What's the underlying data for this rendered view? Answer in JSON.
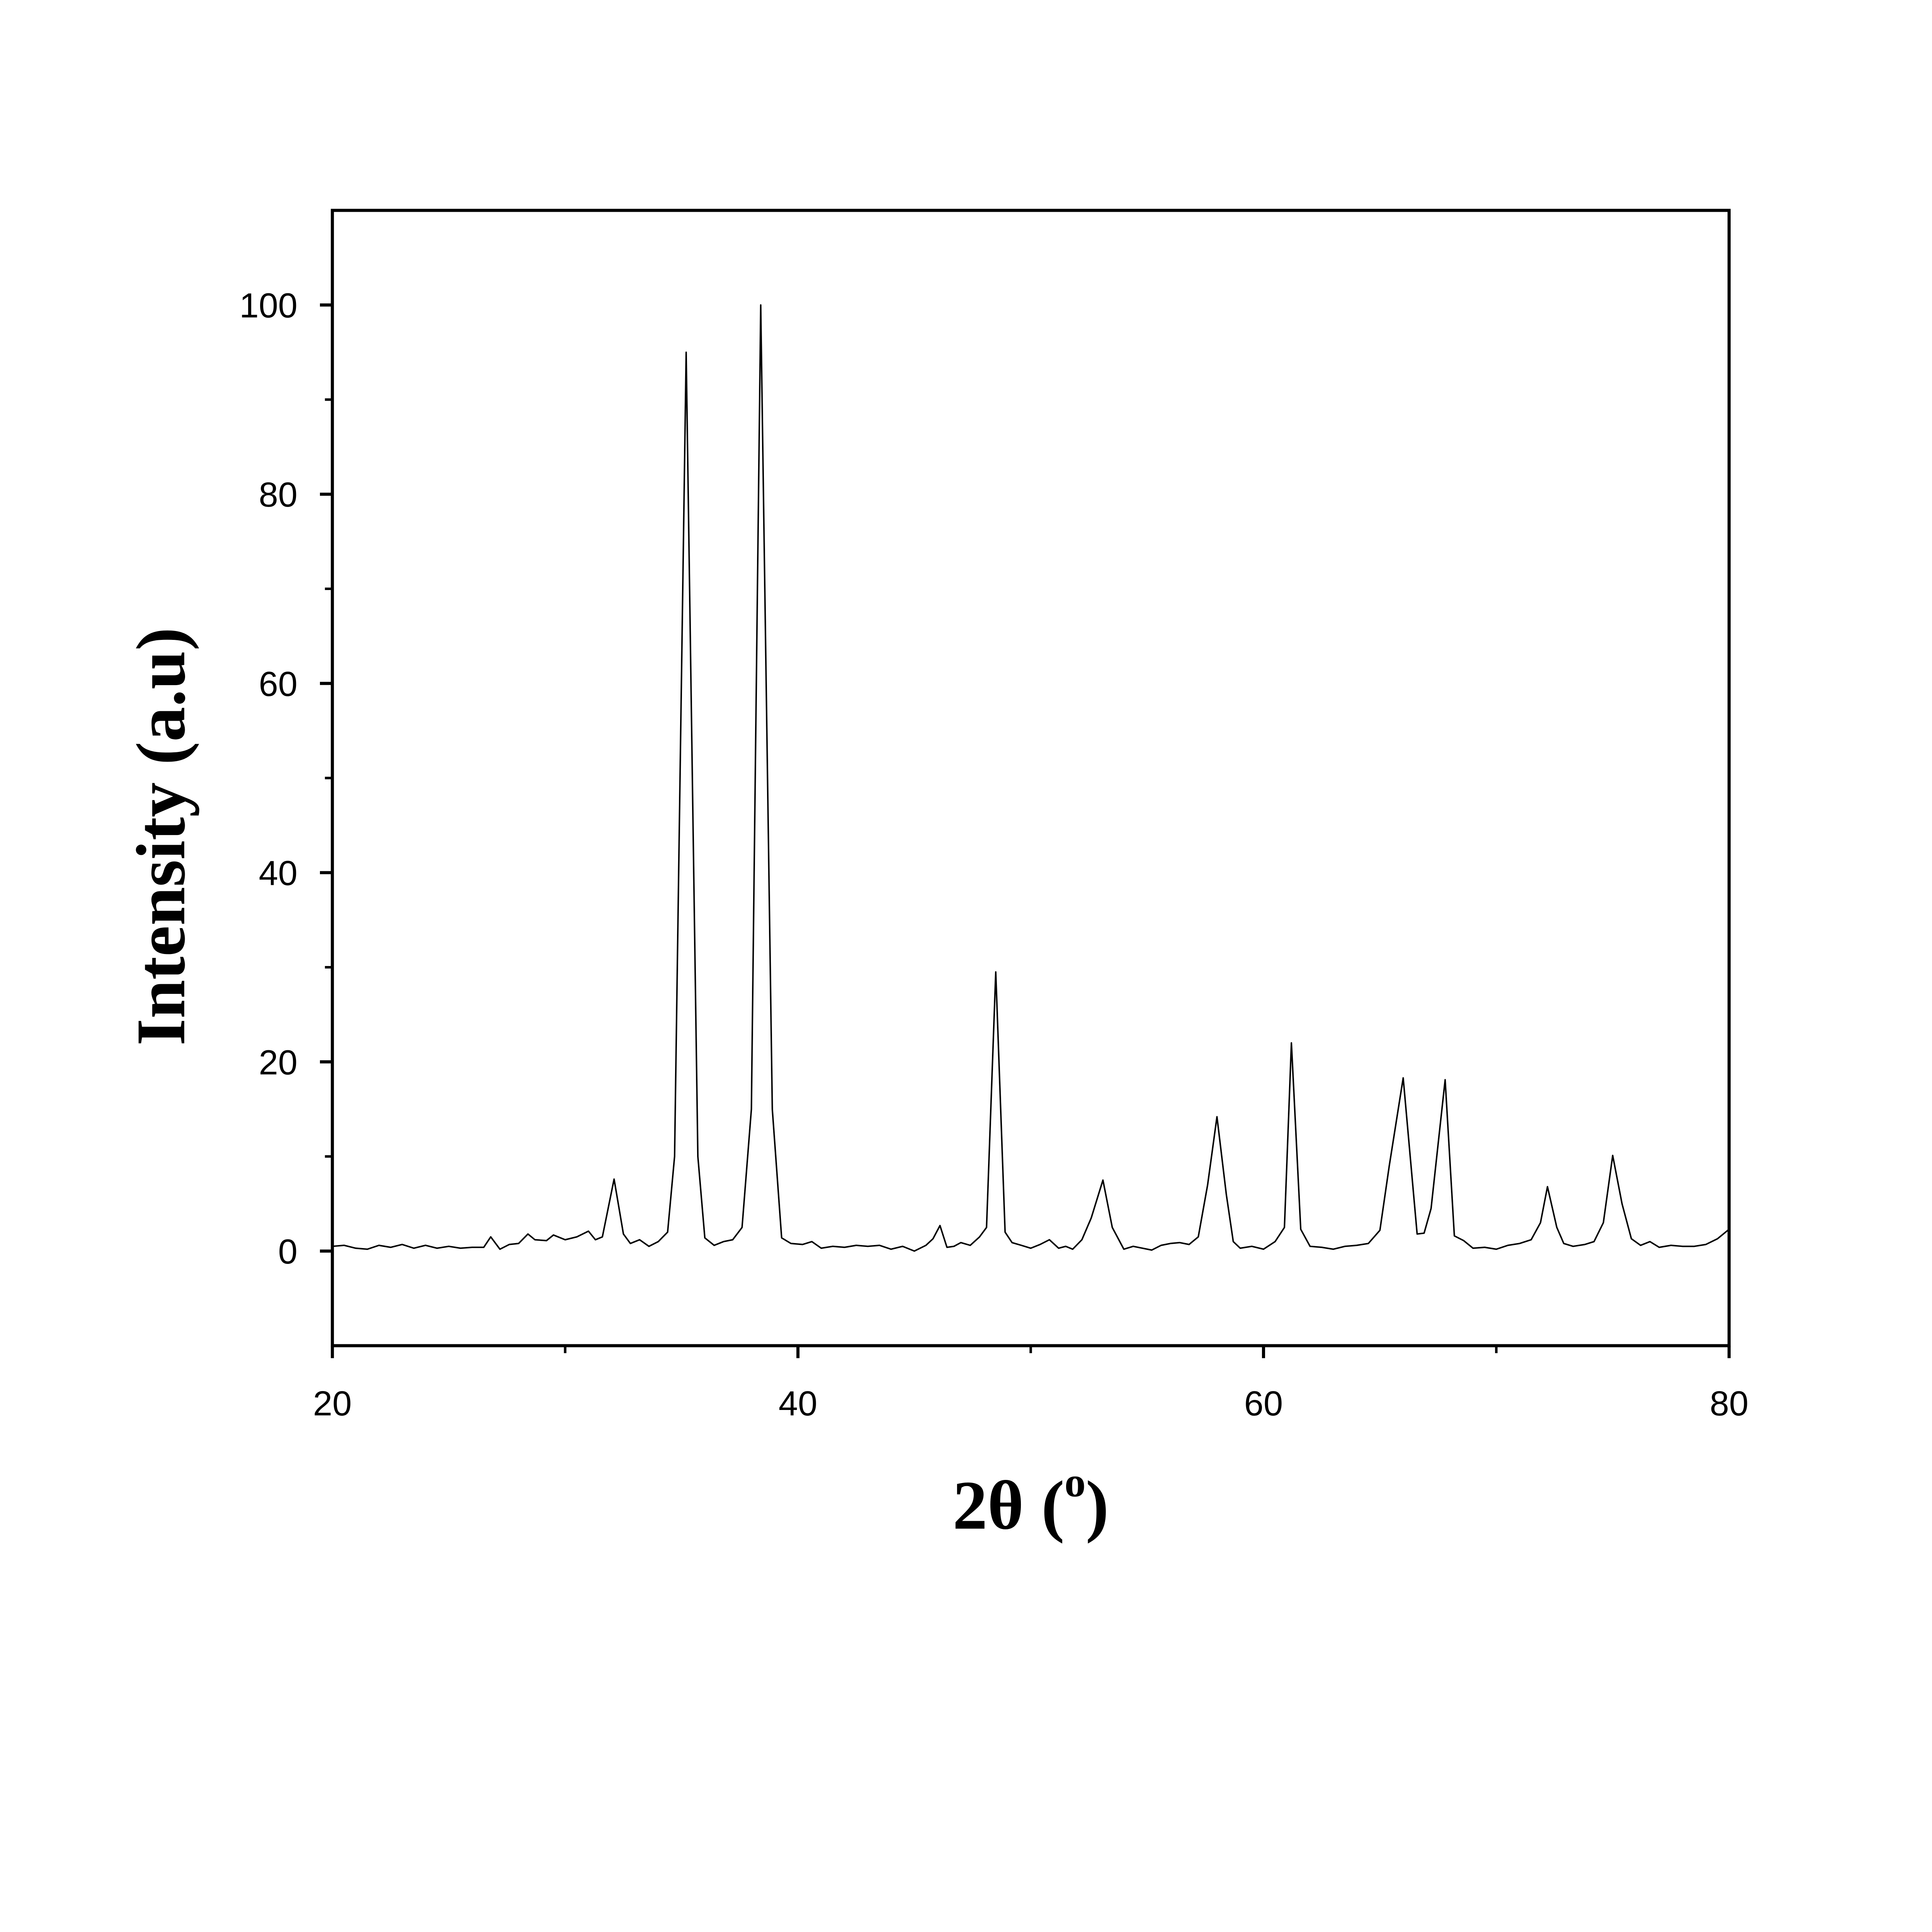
{
  "chart_data": {
    "type": "line",
    "title": "",
    "xlabel": "2θ (",
    "xlabel_superscript": "o",
    "xlabel_close": ")",
    "ylabel": "Intensity (a.u)",
    "xlim": [
      20,
      80
    ],
    "ylim": [
      -10,
      110
    ],
    "xticks": [
      20,
      40,
      60,
      80
    ],
    "xminor": [
      30,
      50,
      70
    ],
    "yticks": [
      0,
      20,
      40,
      60,
      80,
      100
    ],
    "yminor": [
      10,
      30,
      50,
      70,
      90
    ],
    "grid": false,
    "line_color": "#000000",
    "series": [
      {
        "points": [
          [
            20,
            0.5
          ],
          [
            20.5,
            0.6
          ],
          [
            21,
            0.3
          ],
          [
            21.5,
            0.2
          ],
          [
            22,
            0.6
          ],
          [
            22.5,
            0.4
          ],
          [
            23,
            0.7
          ],
          [
            23.5,
            0.3
          ],
          [
            24,
            0.6
          ],
          [
            24.5,
            0.3
          ],
          [
            25,
            0.5
          ],
          [
            25.5,
            0.3
          ],
          [
            26,
            0.4
          ],
          [
            26.5,
            0.4
          ],
          [
            26.8,
            1.5
          ],
          [
            27.2,
            0.2
          ],
          [
            27.6,
            0.7
          ],
          [
            28,
            0.8
          ],
          [
            28.4,
            1.8
          ],
          [
            28.7,
            1.2
          ],
          [
            29.2,
            1.1
          ],
          [
            29.5,
            1.7
          ],
          [
            30,
            1.2
          ],
          [
            30.5,
            1.5
          ],
          [
            31,
            2.1
          ],
          [
            31.3,
            1.2
          ],
          [
            31.6,
            1.5
          ],
          [
            32.1,
            7.6
          ],
          [
            32.5,
            1.8
          ],
          [
            32.8,
            0.8
          ],
          [
            33.2,
            1.2
          ],
          [
            33.6,
            0.5
          ],
          [
            34,
            1.0
          ],
          [
            34.4,
            2.0
          ],
          [
            34.7,
            10
          ],
          [
            35.2,
            95
          ],
          [
            35.7,
            10
          ],
          [
            36,
            1.4
          ],
          [
            36.4,
            0.6
          ],
          [
            36.8,
            1.0
          ],
          [
            37.2,
            1.2
          ],
          [
            37.6,
            2.5
          ],
          [
            38.0,
            15
          ],
          [
            38.4,
            100
          ],
          [
            38.9,
            15
          ],
          [
            39.3,
            1.4
          ],
          [
            39.7,
            0.8
          ],
          [
            40.2,
            0.7
          ],
          [
            40.6,
            1.0
          ],
          [
            41,
            0.3
          ],
          [
            41.5,
            0.5
          ],
          [
            42,
            0.4
          ],
          [
            42.5,
            0.6
          ],
          [
            43,
            0.5
          ],
          [
            43.5,
            0.6
          ],
          [
            44,
            0.2
          ],
          [
            44.5,
            0.5
          ],
          [
            45,
            0.0
          ],
          [
            45.5,
            0.6
          ],
          [
            45.8,
            1.3
          ],
          [
            46.1,
            2.7
          ],
          [
            46.4,
            0.4
          ],
          [
            46.7,
            0.5
          ],
          [
            47,
            0.9
          ],
          [
            47.4,
            0.6
          ],
          [
            47.8,
            1.5
          ],
          [
            48.1,
            2.5
          ],
          [
            48.5,
            29.5
          ],
          [
            48.9,
            2.0
          ],
          [
            49.2,
            0.9
          ],
          [
            49.6,
            0.6
          ],
          [
            50,
            0.3
          ],
          [
            50.4,
            0.7
          ],
          [
            50.8,
            1.2
          ],
          [
            51.2,
            0.3
          ],
          [
            51.5,
            0.5
          ],
          [
            51.8,
            0.2
          ],
          [
            52.2,
            1.2
          ],
          [
            52.6,
            3.5
          ],
          [
            53.1,
            7.5
          ],
          [
            53.5,
            2.5
          ],
          [
            54,
            0.2
          ],
          [
            54.4,
            0.5
          ],
          [
            54.8,
            0.3
          ],
          [
            55.2,
            0.1
          ],
          [
            55.6,
            0.6
          ],
          [
            56,
            0.8
          ],
          [
            56.4,
            0.9
          ],
          [
            56.8,
            0.7
          ],
          [
            57.2,
            1.5
          ],
          [
            57.6,
            7
          ],
          [
            58.0,
            14.2
          ],
          [
            58.4,
            6
          ],
          [
            58.7,
            1.0
          ],
          [
            59,
            0.3
          ],
          [
            59.5,
            0.5
          ],
          [
            60,
            0.2
          ],
          [
            60.5,
            1.0
          ],
          [
            60.9,
            2.5
          ],
          [
            61.2,
            22
          ],
          [
            61.6,
            2.3
          ],
          [
            62,
            0.5
          ],
          [
            62.5,
            0.4
          ],
          [
            63,
            0.2
          ],
          [
            63.5,
            0.5
          ],
          [
            64,
            0.6
          ],
          [
            64.5,
            0.8
          ],
          [
            65,
            2.2
          ],
          [
            65.4,
            9
          ],
          [
            66.0,
            18.3
          ],
          [
            66.6,
            1.8
          ],
          [
            66.9,
            1.9
          ],
          [
            67.2,
            4.5
          ],
          [
            67.8,
            18.1
          ],
          [
            68.2,
            1.6
          ],
          [
            68.6,
            1.1
          ],
          [
            69,
            0.3
          ],
          [
            69.5,
            0.4
          ],
          [
            70,
            0.2
          ],
          [
            70.5,
            0.6
          ],
          [
            71,
            0.8
          ],
          [
            71.5,
            1.2
          ],
          [
            71.9,
            3
          ],
          [
            72.2,
            6.8
          ],
          [
            72.6,
            2.5
          ],
          [
            72.9,
            0.8
          ],
          [
            73.3,
            0.5
          ],
          [
            73.8,
            0.7
          ],
          [
            74.2,
            1.0
          ],
          [
            74.6,
            3
          ],
          [
            75.0,
            10.1
          ],
          [
            75.4,
            5
          ],
          [
            75.8,
            1.3
          ],
          [
            76.2,
            0.6
          ],
          [
            76.6,
            1.0
          ],
          [
            77,
            0.4
          ],
          [
            77.5,
            0.6
          ],
          [
            78,
            0.5
          ],
          [
            78.5,
            0.5
          ],
          [
            79,
            0.7
          ],
          [
            79.5,
            1.3
          ],
          [
            80,
            2.3
          ]
        ]
      }
    ]
  }
}
